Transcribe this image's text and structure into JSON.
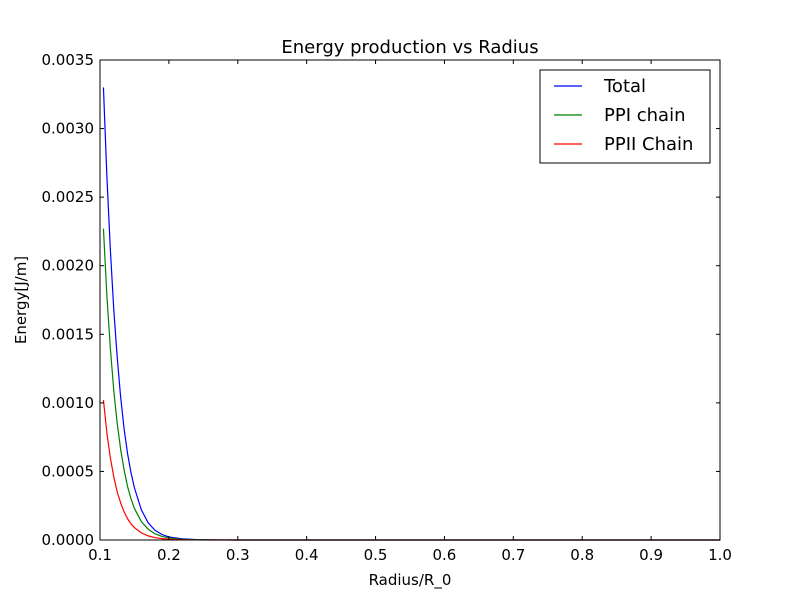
{
  "chart_data": {
    "type": "line",
    "title": "Energy production vs Radius",
    "xlabel": "Radius/R_0",
    "ylabel": "Energy[J/m]",
    "xlim": [
      0.1,
      1.0
    ],
    "ylim": [
      0.0,
      0.0035
    ],
    "xticks": [
      "0.1",
      "0.2",
      "0.3",
      "0.4",
      "0.5",
      "0.6",
      "0.7",
      "0.8",
      "0.9",
      "1.0"
    ],
    "yticks": [
      "0.0000",
      "0.0005",
      "0.0010",
      "0.0015",
      "0.0020",
      "0.0025",
      "0.0030",
      "0.0035"
    ],
    "grid": false,
    "legend_position": "top-right",
    "series": [
      {
        "name": "Total",
        "color": "#0000ff",
        "x": [
          0.105,
          0.11,
          0.115,
          0.12,
          0.125,
          0.13,
          0.135,
          0.14,
          0.145,
          0.15,
          0.16,
          0.17,
          0.18,
          0.19,
          0.2,
          0.22,
          0.24,
          0.26,
          0.28,
          0.3,
          0.35,
          0.4,
          0.5,
          0.6,
          0.7,
          0.8,
          0.9,
          1.0
        ],
        "y": [
          0.0033,
          0.00265,
          0.00212,
          0.00168,
          0.00133,
          0.00104,
          0.00081,
          0.00063,
          0.00049,
          0.00038,
          0.00022,
          0.000125,
          7e-05,
          4e-05,
          2.2e-05,
          8e-06,
          3e-06,
          1e-06,
          5e-07,
          2e-07,
          0.0,
          0.0,
          0.0,
          0.0,
          0.0,
          0.0,
          0.0,
          0.0
        ]
      },
      {
        "name": "PPI chain",
        "color": "#008000",
        "x": [
          0.105,
          0.11,
          0.115,
          0.12,
          0.125,
          0.13,
          0.135,
          0.14,
          0.145,
          0.15,
          0.16,
          0.17,
          0.18,
          0.19,
          0.2,
          0.22,
          0.24,
          0.26,
          0.28,
          0.3,
          0.35,
          0.4,
          0.5,
          0.6,
          0.7,
          0.8,
          0.9,
          1.0
        ],
        "y": [
          0.00227,
          0.00178,
          0.0014,
          0.00109,
          0.00085,
          0.00066,
          0.00051,
          0.00039,
          0.0003,
          0.00023,
          0.000135,
          7.8e-05,
          4.5e-05,
          2.6e-05,
          1.5e-05,
          5e-06,
          2e-06,
          7e-07,
          3e-07,
          1e-07,
          0.0,
          0.0,
          0.0,
          0.0,
          0.0,
          0.0,
          0.0,
          0.0
        ]
      },
      {
        "name": "PPII Chain",
        "color": "#ff0000",
        "x": [
          0.105,
          0.11,
          0.115,
          0.12,
          0.125,
          0.13,
          0.135,
          0.14,
          0.145,
          0.15,
          0.16,
          0.17,
          0.18,
          0.19,
          0.2,
          0.22,
          0.24,
          0.26,
          0.28,
          0.3,
          0.35,
          0.4,
          0.5,
          0.6,
          0.7,
          0.8,
          0.9,
          1.0
        ],
        "y": [
          0.00102,
          0.00078,
          0.0006,
          0.00046,
          0.00035,
          0.00027,
          0.000205,
          0.000155,
          0.000118,
          9e-05,
          5.2e-05,
          3e-05,
          1.7e-05,
          1e-05,
          5.5e-06,
          1.7e-06,
          5e-07,
          2e-07,
          0.0,
          0.0,
          0.0,
          0.0,
          0.0,
          0.0,
          0.0,
          0.0,
          0.0,
          0.0
        ]
      }
    ]
  }
}
